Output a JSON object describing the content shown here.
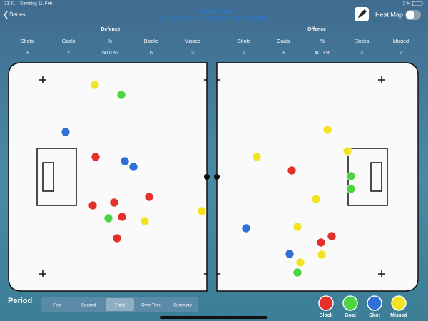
{
  "status_bar": {
    "time": "22:31",
    "date": "Samstag 11. Feb.",
    "battery": "2 %"
  },
  "nav": {
    "back": "Series",
    "title": "Register Shots",
    "subtitle": "11. Feb 2023  TV Eiche Horn,Baltic Storms",
    "toggle": "Heat Map"
  },
  "defence": {
    "title": "Defence",
    "headers": [
      "Shots",
      "Goals",
      "%",
      "Blocks",
      "Missed"
    ],
    "values": [
      3,
      2,
      "60.0 %",
      6,
      3
    ]
  },
  "offence": {
    "title": "Offence",
    "headers": [
      "Shots",
      "Goals",
      "%",
      "Blocks",
      "Missed"
    ],
    "values": [
      2,
      3,
      "40.0 %",
      3,
      7
    ]
  },
  "period": {
    "label": "Period",
    "tabs": [
      "First",
      "Second",
      "Third",
      "Over Time",
      "Summary"
    ],
    "selected": "Third"
  },
  "legend": [
    "Block",
    "Goal",
    "Shot",
    "Missed"
  ]
}
